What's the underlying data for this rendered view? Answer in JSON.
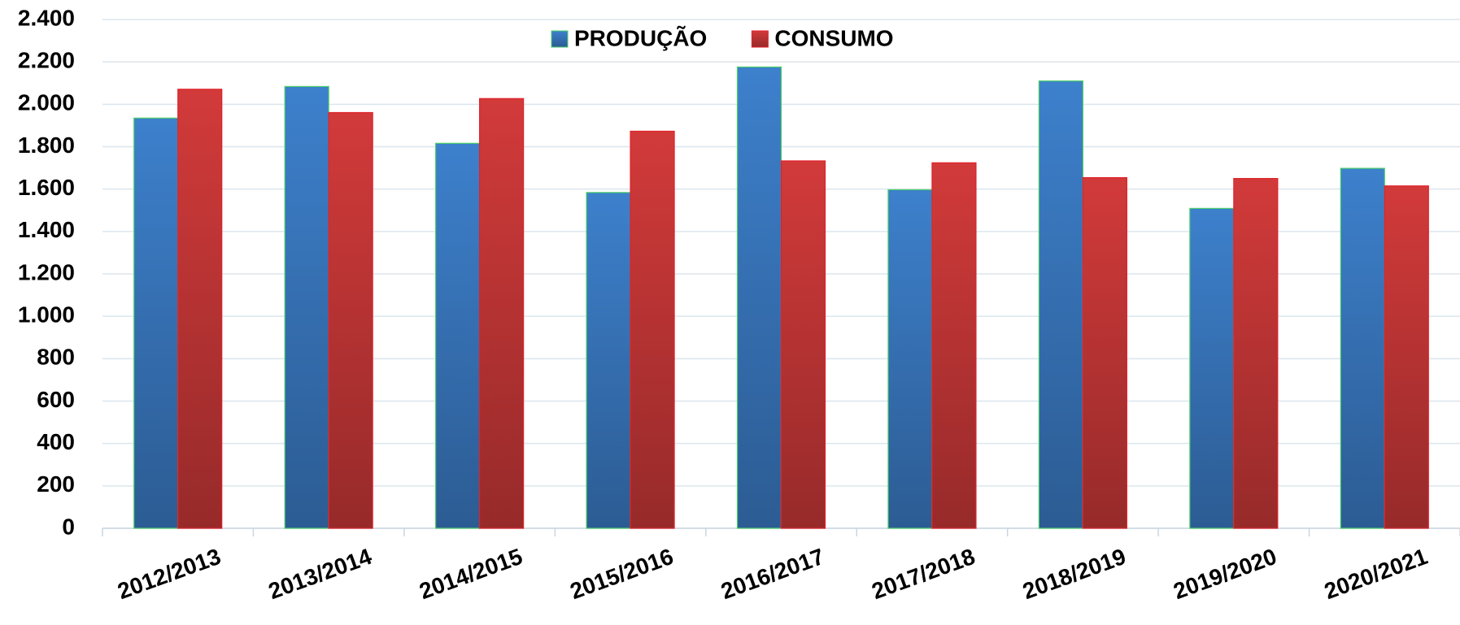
{
  "chart_data": {
    "type": "bar",
    "categories": [
      "2012/2013",
      "2013/2014",
      "2014/2015",
      "2015/2016",
      "2016/2017",
      "2017/2018",
      "2018/2019",
      "2019/2020",
      "2020/2021"
    ],
    "series": [
      {
        "name": "PRODUÇÃO",
        "color": "#3d80cc",
        "values": [
          1935,
          2084,
          1816,
          1584,
          2176,
          1597,
          2110,
          1509,
          1698
        ]
      },
      {
        "name": "CONSUMO",
        "color": "#d23a3a",
        "values": [
          2071,
          1961,
          2027,
          1873,
          1733,
          1724,
          1654,
          1650,
          1615
        ]
      }
    ],
    "ylim": [
      0,
      2400
    ],
    "yticks": [
      0,
      200,
      400,
      600,
      800,
      {
        "value": 1000,
        "label": "1.000"
      },
      {
        "value": 1200,
        "label": "1.200"
      },
      {
        "value": 1400,
        "label": "1.400"
      },
      {
        "value": 1600,
        "label": "1.600"
      },
      {
        "value": 1800,
        "label": "1.800"
      },
      {
        "value": 2000,
        "label": "2.000"
      },
      {
        "value": 2200,
        "label": "2.200"
      },
      {
        "value": 2400,
        "label": "2.400"
      }
    ],
    "grid": true
  }
}
